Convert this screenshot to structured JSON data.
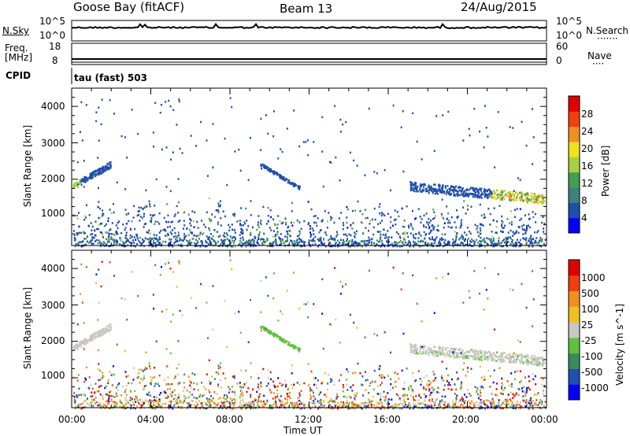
{
  "header": {
    "station": "Goose Bay (fitACF)",
    "beam": "Beam 13",
    "date": "24/Aug/2015"
  },
  "panels": {
    "nsky_label": "N.Sky",
    "nsearch_label": "N.Search",
    "nsearch_dots": "·······",
    "freq_label_line1": "Freq.",
    "freq_label_line2": "[MHz]",
    "nave_label": "Nave",
    "nave_dots": "····",
    "cpid_label": "CPID",
    "cpid_text": "tau (fast) 503",
    "nsky_ticks": [
      "10^5",
      "10^0"
    ],
    "nsearch_ticks": [
      "10^5",
      "10^0"
    ],
    "freq_ticks": [
      "18",
      "8"
    ],
    "nave_ticks": [
      "60",
      "0"
    ]
  },
  "chart_data": [
    {
      "type": "heatmap",
      "name": "power",
      "ylabel": "Slant Range [km]",
      "yticks": [
        "4000",
        "3000",
        "2000",
        "1000"
      ],
      "ylim": [
        180,
        4500
      ],
      "colorbar_label": "Power [dB]",
      "colorbar_ticks": [
        "28",
        "24",
        "20",
        "16",
        "12",
        "8",
        "4"
      ],
      "colors": [
        "#0000ff",
        "#1f4fa8",
        "#3f7f7f",
        "#3fa050",
        "#a8d040",
        "#f0e020",
        "#f09020",
        "#f04010",
        "#e00000"
      ]
    },
    {
      "type": "heatmap",
      "name": "velocity",
      "ylabel": "Slant Range [km]",
      "yticks": [
        "4000",
        "3000",
        "2000",
        "1000"
      ],
      "ylim": [
        180,
        4500
      ],
      "colorbar_label": "Velocity [m s^-1]",
      "colorbar_ticks": [
        "1000",
        "500",
        "100",
        "25",
        "-25",
        "-100",
        "-500",
        "-1000"
      ],
      "colors": [
        "#0000ff",
        "#2050b0",
        "#3a8a60",
        "#60c040",
        "#c8c8c0",
        "#f0c020",
        "#f09020",
        "#f04010",
        "#e00000"
      ]
    }
  ],
  "xaxis": {
    "label": "Time UT",
    "ticks": [
      "00:00",
      "04:00",
      "08:00",
      "12:00",
      "16:00",
      "20:00",
      "00:00"
    ]
  }
}
